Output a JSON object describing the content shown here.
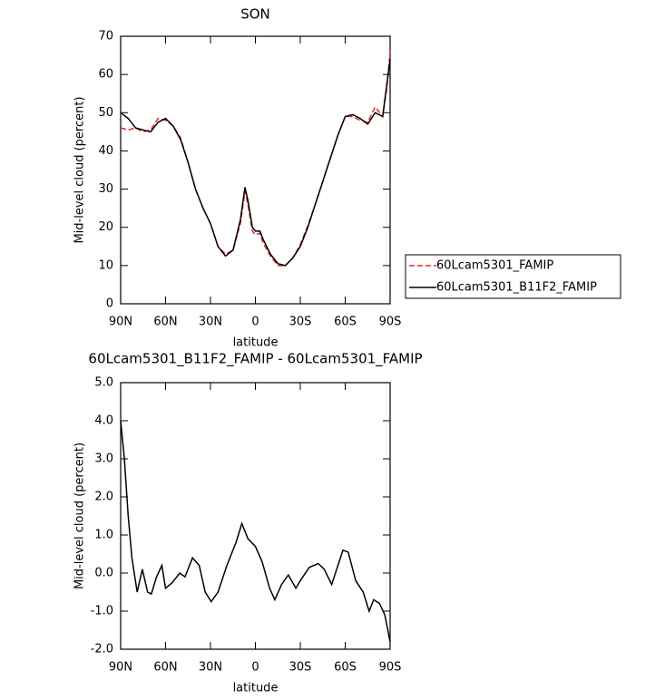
{
  "chart_data": [
    {
      "type": "line",
      "title": "SON",
      "xlabel": "latitude",
      "ylabel": "Mid-level cloud (percent)",
      "xlim": [
        90,
        -90
      ],
      "xticks": [
        {
          "value": 90,
          "label": "90N"
        },
        {
          "value": 60,
          "label": "60N"
        },
        {
          "value": 30,
          "label": "30N"
        },
        0,
        {
          "value": -30,
          "label": "30S"
        },
        {
          "value": -60,
          "label": "60S"
        },
        {
          "value": -90,
          "label": "90S"
        }
      ],
      "ylim": [
        0,
        70
      ],
      "yticks": [
        0,
        10,
        20,
        30,
        40,
        50,
        60,
        70
      ],
      "legend": "right",
      "x": [
        90,
        85,
        80,
        75,
        70,
        65,
        60,
        55,
        50,
        45,
        40,
        35,
        30,
        25,
        20,
        15,
        10,
        7,
        5,
        2,
        0,
        -3,
        -5,
        -10,
        -15,
        -20,
        -25,
        -30,
        -35,
        -40,
        -45,
        -50,
        -55,
        -60,
        -65,
        -70,
        -75,
        -80,
        -85,
        -88,
        -90
      ],
      "series": [
        {
          "name": "60Lcam5301_FAMIP",
          "color": "#e8282b",
          "dash": true,
          "values": [
            46,
            45.5,
            46,
            45,
            45.5,
            48.5,
            48,
            46.5,
            43.5,
            37,
            30,
            25,
            21,
            15,
            13,
            14,
            21,
            29.5,
            26,
            19,
            18,
            18.5,
            16,
            12.5,
            10,
            10,
            12,
            15.5,
            20.5,
            26,
            32,
            38,
            44,
            49,
            49,
            48,
            47.5,
            51.5,
            49,
            57,
            66
          ]
        },
        {
          "name": "60Lcam5301_B11F2_FAMIP",
          "color": "#000000",
          "dash": false,
          "values": [
            50,
            48.5,
            46,
            45.5,
            45,
            47.5,
            48.5,
            46.5,
            43,
            37,
            30,
            25,
            21,
            15,
            12.5,
            14,
            22,
            30.5,
            27,
            20,
            19,
            19,
            17,
            13,
            10.5,
            10,
            12,
            15,
            20,
            26,
            32,
            38,
            44,
            49,
            49.5,
            48.5,
            47,
            50,
            49,
            58,
            64
          ]
        }
      ]
    },
    {
      "type": "line",
      "title": "60Lcam5301_B11F2_FAMIP - 60Lcam5301_FAMIP",
      "xlabel": "latitude",
      "ylabel": "Mid-level cloud (percent)",
      "xlim": [
        90,
        -90
      ],
      "xticks": [
        {
          "value": 90,
          "label": "90N"
        },
        {
          "value": 60,
          "label": "60N"
        },
        {
          "value": 30,
          "label": "30N"
        },
        0,
        {
          "value": -30,
          "label": "30S"
        },
        {
          "value": -60,
          "label": "60S"
        },
        {
          "value": -90,
          "label": "90S"
        }
      ],
      "ylim": [
        -2,
        5
      ],
      "yticks": [
        {
          "value": -2,
          "label": "-2.0"
        },
        {
          "value": -1,
          "label": "-1.0"
        },
        {
          "value": 0,
          "label": "0.0"
        },
        {
          "value": 1,
          "label": "1.0"
        },
        {
          "value": 2,
          "label": "2.0"
        },
        {
          "value": 3,
          "label": "3.0"
        },
        {
          "value": 4,
          "label": "4.0"
        },
        {
          "value": 5,
          "label": "5.0"
        }
      ],
      "x": [
        90,
        87.5,
        85,
        82.5,
        79,
        75.5,
        72,
        69.5,
        66,
        62.5,
        60,
        55.5,
        50.5,
        47,
        42,
        37.5,
        33.5,
        29.5,
        25,
        19,
        13,
        9,
        5,
        0,
        -4.5,
        -9.5,
        -13,
        -17.5,
        -22,
        -27,
        -30,
        -36,
        -42,
        -46,
        -51,
        -58.5,
        -62,
        -67,
        -72,
        -76,
        -79,
        -83,
        -86.5,
        -90
      ],
      "series": [
        {
          "color": "#000000",
          "dash": false,
          "values": [
            4.0,
            3.0,
            1.5,
            0.4,
            -0.5,
            0.1,
            -0.5,
            -0.55,
            -0.1,
            0.2,
            -0.4,
            -0.25,
            0.0,
            -0.1,
            0.4,
            0.2,
            -0.5,
            -0.75,
            -0.5,
            0.2,
            0.8,
            1.3,
            0.9,
            0.7,
            0.3,
            -0.4,
            -0.7,
            -0.3,
            -0.05,
            -0.4,
            -0.2,
            0.15,
            0.25,
            0.1,
            -0.3,
            0.6,
            0.55,
            -0.2,
            -0.5,
            -1.0,
            -0.7,
            -0.8,
            -1.1,
            -1.8
          ]
        }
      ]
    }
  ]
}
